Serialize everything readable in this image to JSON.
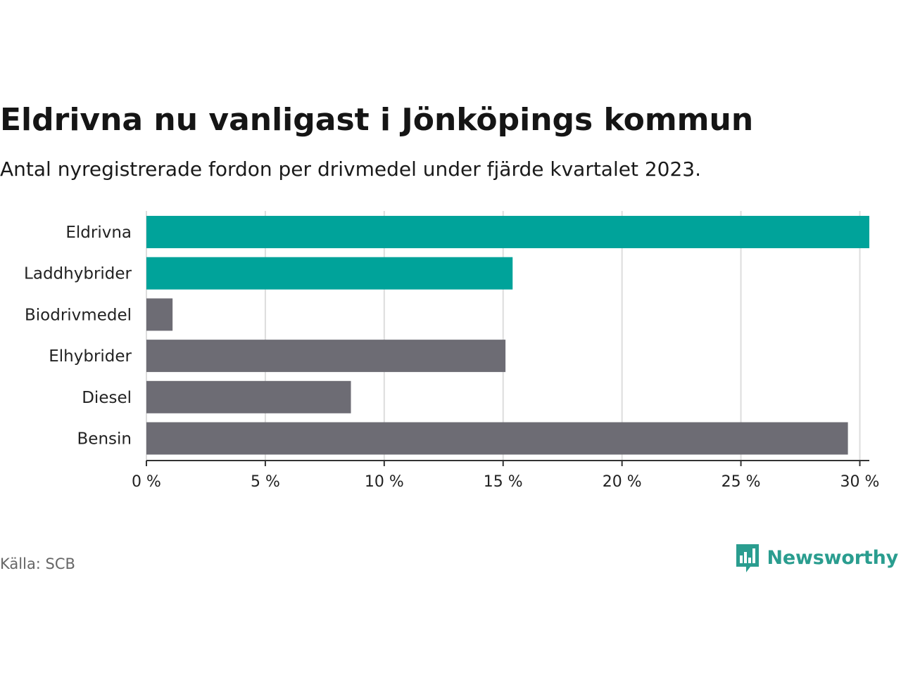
{
  "chart_data": {
    "type": "bar",
    "orientation": "horizontal",
    "title": "Eldrivna nu vanligast i Jönköpings kommun",
    "subtitle": "Antal nyregistrerade fordon per drivmedel under fjärde kvartalet 2023.",
    "categories": [
      "Eldrivna",
      "Laddhybrider",
      "Biodrivmedel",
      "Elhybrider",
      "Diesel",
      "Bensin"
    ],
    "values": [
      30.4,
      15.4,
      1.1,
      15.1,
      8.6,
      29.5
    ],
    "highlighted": [
      true,
      true,
      false,
      false,
      false,
      false
    ],
    "xlim": [
      0,
      30.4
    ],
    "xticks": [
      0,
      5,
      10,
      15,
      20,
      25,
      30
    ],
    "xtick_labels": [
      "0 %",
      "5 %",
      "10 %",
      "15 %",
      "20 %",
      "25 %",
      "30 %"
    ],
    "xlabel": "",
    "ylabel": "",
    "grid": true,
    "colors": {
      "highlight": "#00a39a",
      "default": "#6d6c74",
      "grid": "#dddddd",
      "axis": "#333333"
    }
  },
  "footer": {
    "source": "Källa: SCB",
    "brand": "Newsworthy",
    "brand_color": "#2a9d8f",
    "brand_icon": "bar-chart-speech-bubble-icon"
  }
}
